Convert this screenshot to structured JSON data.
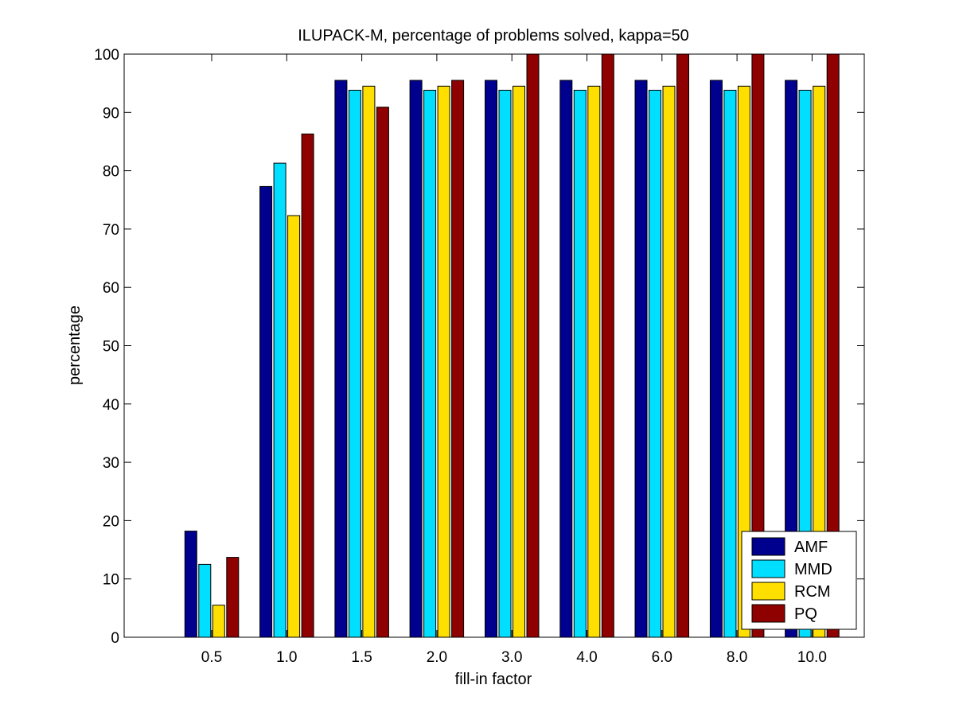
{
  "chart_data": {
    "type": "bar",
    "title": "ILUPACK-M, percentage of problems solved, kappa=50",
    "xlabel": "fill-in factor",
    "ylabel": "percentage",
    "ylim": [
      0,
      100
    ],
    "yticks": [
      0,
      10,
      20,
      30,
      40,
      50,
      60,
      70,
      80,
      90,
      100
    ],
    "categories": [
      "0.5",
      "1.0",
      "1.5",
      "2.0",
      "3.0",
      "4.0",
      "6.0",
      "8.0",
      "10.0"
    ],
    "grid": false,
    "legend_position": "bottom-right",
    "series": [
      {
        "name": "AMF",
        "color": "#00008f",
        "values": [
          18.2,
          77.3,
          95.5,
          95.5,
          95.5,
          95.5,
          95.5,
          95.5,
          95.5
        ]
      },
      {
        "name": "MMD",
        "color": "#00dfff",
        "values": [
          12.5,
          81.3,
          93.8,
          93.8,
          93.8,
          93.8,
          93.8,
          93.8,
          93.8
        ]
      },
      {
        "name": "RCM",
        "color": "#ffdf00",
        "values": [
          5.5,
          72.3,
          94.5,
          94.5,
          94.5,
          94.5,
          94.5,
          94.5,
          94.5
        ]
      },
      {
        "name": "PQ",
        "color": "#8f0000",
        "values": [
          13.7,
          86.3,
          90.9,
          95.5,
          100,
          100,
          100,
          100,
          100
        ]
      }
    ]
  }
}
